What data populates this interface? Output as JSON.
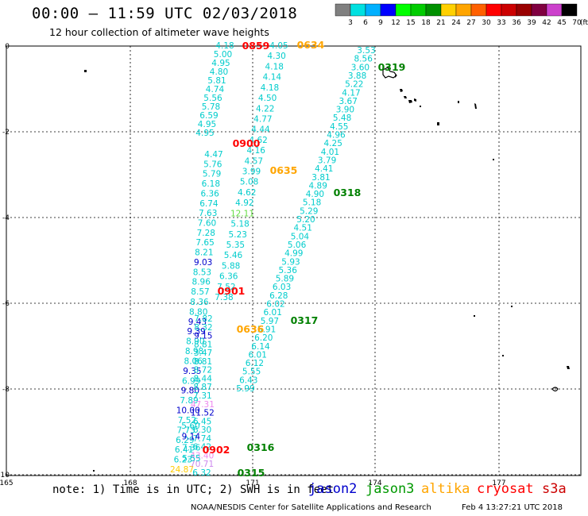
{
  "title": "00:00 – 11:59 UTC 02/03/2018",
  "subtitle": "12 hour collection of altimeter wave heights",
  "color_scale": {
    "labels": [
      "3",
      "6",
      "9",
      "12",
      "15",
      "18",
      "21",
      "24",
      "27",
      "30",
      "33",
      "36",
      "39",
      "42",
      "45",
      "70",
      "(ft)"
    ],
    "colors": [
      "#808080",
      "#00e0e0",
      "#00b0ff",
      "#0000ff",
      "#00ff00",
      "#00cc00",
      "#009000",
      "#ffd000",
      "#ffa500",
      "#ff6000",
      "#ff0000",
      "#cc0000",
      "#990000",
      "#800040",
      "#cc40cc",
      "#000000"
    ]
  },
  "axes": {
    "lat_labels": [
      "0",
      "-2",
      "-4",
      "-6",
      "-8",
      "-10"
    ],
    "lon_labels": [
      "165",
      "168",
      "171",
      "174",
      "177"
    ]
  },
  "time_labels": [
    {
      "text": "0859",
      "color": "#ff0000"
    },
    {
      "text": "0634",
      "color": "#ffa500"
    },
    {
      "text": "0319",
      "color": "#008000"
    },
    {
      "text": "0900",
      "color": "#ff0000"
    },
    {
      "text": "0635",
      "color": "#ffa500"
    },
    {
      "text": "0318",
      "color": "#008000"
    },
    {
      "text": "0901",
      "color": "#ff0000"
    },
    {
      "text": "0636",
      "color": "#ffa500"
    },
    {
      "text": "0317",
      "color": "#008000"
    },
    {
      "text": "0902",
      "color": "#ff0000"
    },
    {
      "text": "0316",
      "color": "#008000"
    },
    {
      "text": "0315",
      "color": "#008000"
    }
  ],
  "tracks": {
    "track_0859": {
      "color": "#00cccc",
      "values": [
        "4.18",
        "5.00",
        "4.95",
        "4.80",
        "5.81",
        "4.74",
        "5.56",
        "5.78",
        "6.59",
        "4.95",
        "4.95"
      ]
    },
    "track_0900": {
      "color": "#00cccc",
      "values": [
        "4.47",
        "5.76",
        "5.79",
        "6.18",
        "6.36",
        "6.74",
        "7.63",
        "7.60",
        "7.28",
        "7.65",
        "8.21",
        "9.03",
        "8.53",
        "8.96",
        "8.57"
      ]
    },
    "track_0901": {
      "color": "#00cccc",
      "values": [
        "8.36",
        "8.80",
        "9.43",
        "9.39",
        "8.90",
        "8.98",
        "8.06",
        "9.35",
        "6.99",
        "9.80",
        "7.89",
        "10.00",
        "7.52",
        "7.73",
        "6.29",
        "6.41",
        "6.23",
        "24.87"
      ]
    },
    "track_0634": {
      "color": "#00cccc",
      "values": [
        "4.05",
        "4.30",
        "4.18",
        "4.14",
        "4.18",
        "4.50",
        "4.22",
        "4.77",
        "4.44",
        "4.62",
        "4.16",
        "4.57",
        "3.99",
        "5.08",
        "4.62",
        "4.92",
        "12.11",
        "5.18",
        "5.23",
        "5.35",
        "5.46",
        "5.88",
        "6.36",
        "7.52",
        "7.38"
      ]
    },
    "track_0636": {
      "color": "#00cccc",
      "values": [
        "7.82",
        "8.32",
        "9.15",
        "8.81",
        "3.47",
        "8.81",
        "8.72",
        "8.44",
        "8.87",
        "7.31",
        "47.31",
        "11.52",
        "6.45",
        "6.30",
        "7.74",
        "6.42",
        "43.40",
        "70.71",
        "6.32"
      ]
    },
    "track_0319": {
      "color": "#00cccc",
      "values": [
        "3.53",
        "8.56",
        "3.60",
        "3.88",
        "5.22",
        "4.17",
        "3.67",
        "3.90",
        "5.48",
        "4.55",
        "4.96",
        "4.25",
        "4.01",
        "3.79",
        "4.41",
        "3.81",
        "4.89",
        "4.90",
        "5.18",
        "5.29",
        "5.20",
        "4.51",
        "5.04",
        "5.06",
        "4.99",
        "5.93",
        "5.36",
        "5.89",
        "6.03",
        "6.28",
        "6.02",
        "6.01",
        "5.97",
        "5.91",
        "6.20",
        "6.14",
        "6.01",
        "6.12",
        "5.55",
        "6.43",
        "5.99"
      ]
    },
    "track_0902": {
      "color": "#00cccc",
      "values": [
        "5.60",
        "9.14",
        "7.36",
        "5.55"
      ]
    }
  },
  "note": "note: 1) Time is in UTC; 2) SWH is in feet",
  "satellites": [
    {
      "name": "jason2",
      "color": "#0000cc"
    },
    {
      "name": "jason3",
      "color": "#009900"
    },
    {
      "name": "altika",
      "color": "#ffa500"
    },
    {
      "name": "cryosat",
      "color": "#ff0000"
    },
    {
      "name": "s3a",
      "color": "#cc0000"
    }
  ],
  "credit": "NOAA/NESDIS Center for Satellite Applications and Research",
  "date_stamp": "Feb  4 13:27:21 UTC 2018"
}
